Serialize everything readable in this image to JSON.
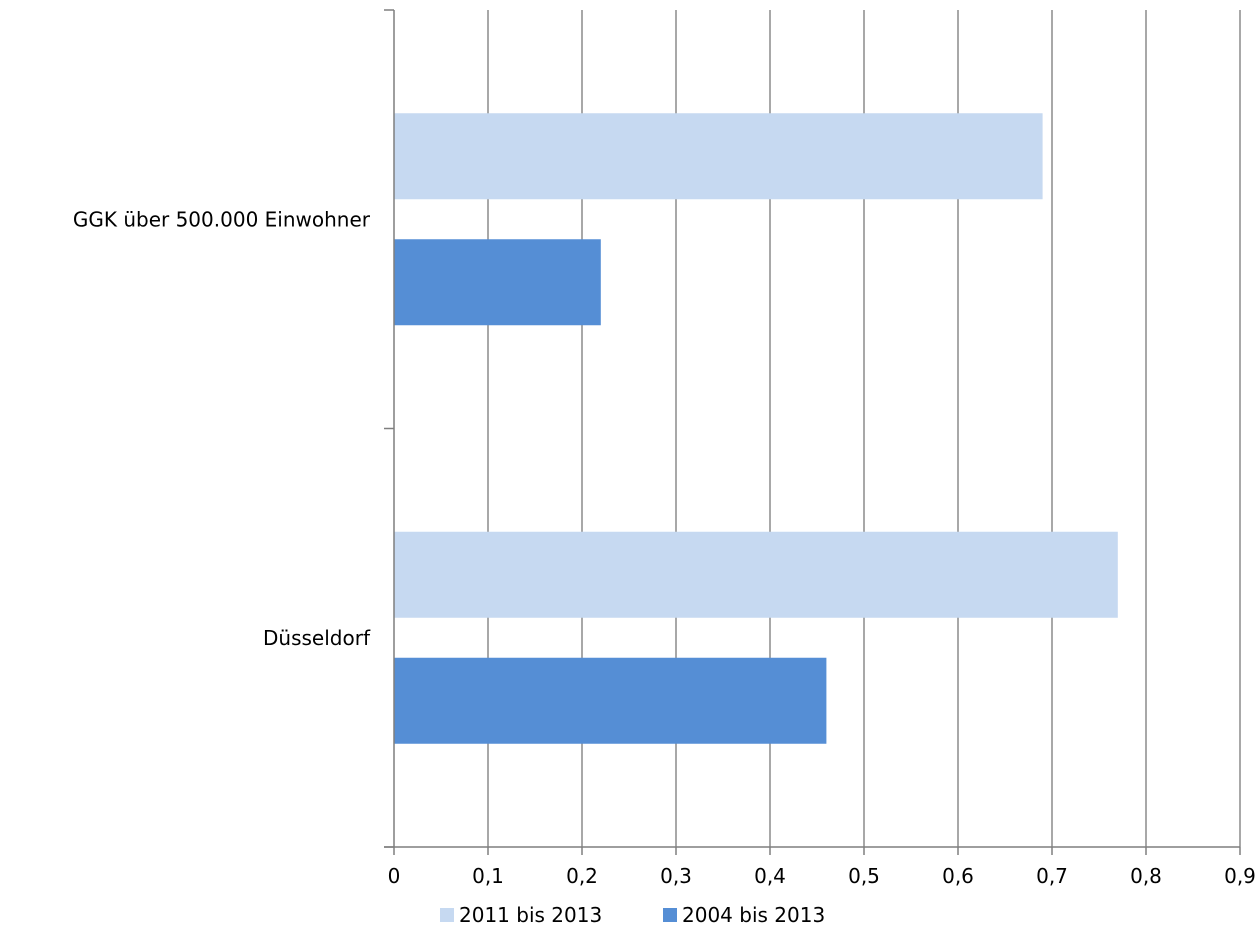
{
  "chart_data": {
    "type": "bar",
    "orientation": "horizontal",
    "categories": [
      "GGK über 500.000 Einwohner",
      "Düsseldorf"
    ],
    "series": [
      {
        "name": "2011 bis 2013",
        "values": [
          0.69,
          0.77
        ],
        "color": "#c6d9f1"
      },
      {
        "name": "2004 bis 2013",
        "values": [
          0.22,
          0.46
        ],
        "color": "#558ed5"
      }
    ],
    "xlim": [
      0,
      0.9
    ],
    "x_ticks": [
      0,
      0.1,
      0.2,
      0.3,
      0.4,
      0.5,
      0.6,
      0.7,
      0.8,
      0.9
    ],
    "x_tick_labels": [
      "0",
      "0,1",
      "0,2",
      "0,3",
      "0,4",
      "0,5",
      "0,6",
      "0,7",
      "0,8",
      "0,9"
    ],
    "grid": {
      "vertical": true,
      "color": "#8c8c8c"
    },
    "legend": {
      "position": "bottom"
    },
    "title": "",
    "xlabel": "",
    "ylabel": ""
  }
}
